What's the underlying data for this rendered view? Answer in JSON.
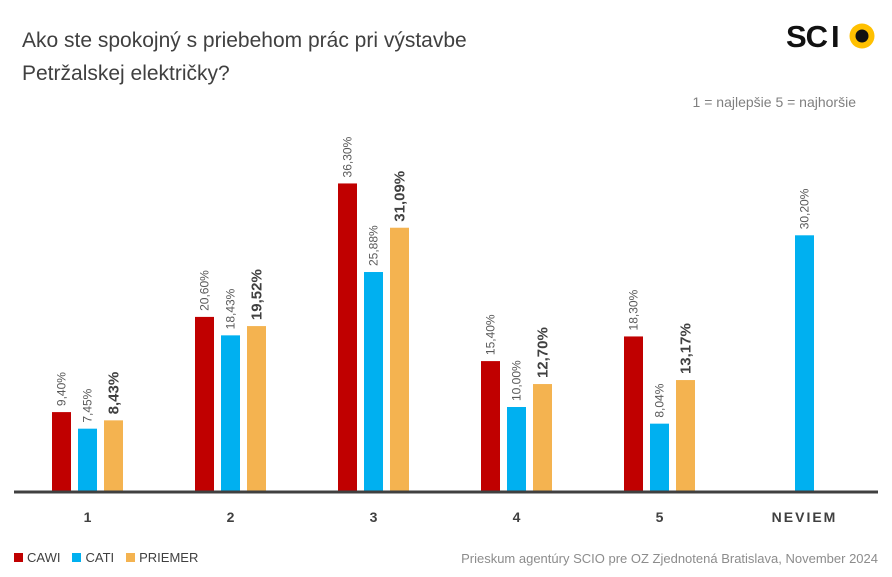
{
  "title_line1": "Ako ste spokojný s priebehom prác pri výstavbe",
  "title_line2": "Petržalskej električky?",
  "note": "1 = najlepšie 5 = najhoršie",
  "logo_text": "SCIO",
  "source": "Prieskum agentúry SCIO pre OZ Zjednotená Bratislava, November 2024",
  "colors": {
    "CAWI": "#c00000",
    "CATI": "#00b0f0",
    "PRIEMER": "#f4b350",
    "axis": "#404040",
    "logo_dot": "#ffc000"
  },
  "chart_data": {
    "type": "bar",
    "categories": [
      "1",
      "2",
      "3",
      "4",
      "5",
      "NEVIEM"
    ],
    "series": [
      {
        "name": "CAWI",
        "values": [
          9.4,
          20.6,
          36.3,
          15.4,
          18.3,
          null
        ],
        "labels": [
          "9,40%",
          "20,60%",
          "36,30%",
          "15,40%",
          "18,30%",
          ""
        ]
      },
      {
        "name": "CATI",
        "values": [
          7.45,
          18.43,
          25.88,
          10.0,
          8.04,
          30.2
        ],
        "labels": [
          "7,45%",
          "18,43%",
          "25,88%",
          "10,00%",
          "8,04%",
          "30,20%"
        ]
      },
      {
        "name": "PRIEMER",
        "values": [
          8.43,
          19.52,
          31.09,
          12.7,
          13.17,
          null
        ],
        "labels": [
          "8,43%",
          "19,52%",
          "31,09%",
          "12,70%",
          "13,17%",
          ""
        ]
      }
    ],
    "ylim": [
      0,
      40
    ],
    "grid": false,
    "legend": "bottom-left"
  }
}
